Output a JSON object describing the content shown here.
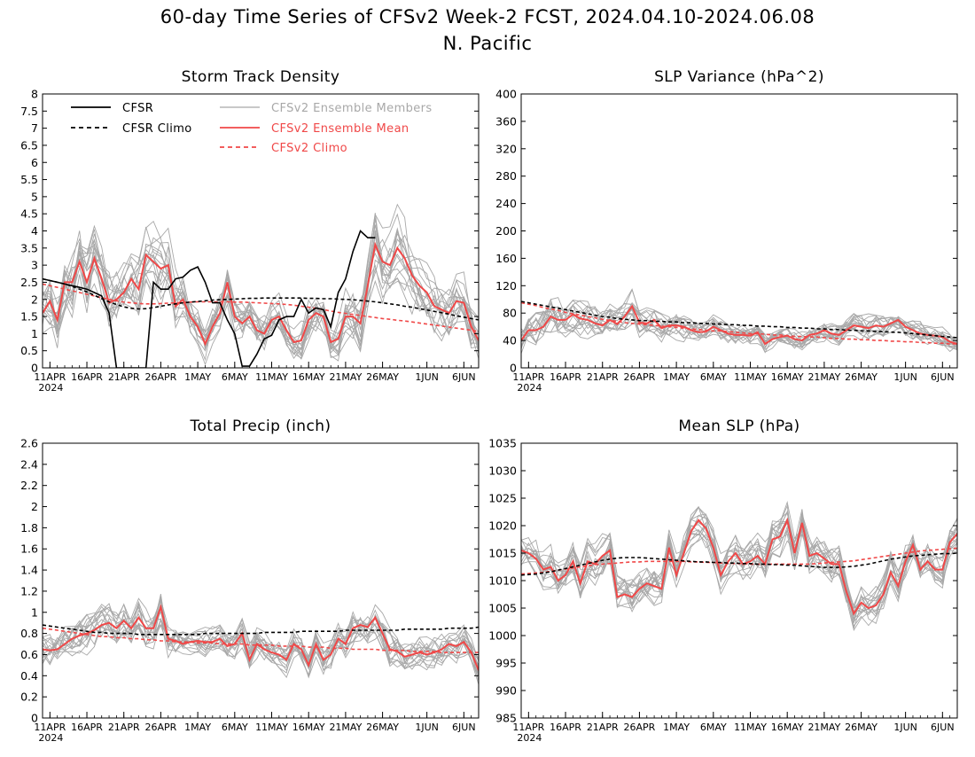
{
  "page": {
    "title_line1": "60-day Time Series of CFSv2 Week-2 FCST, 2024.04.10-2024.06.08",
    "title_line2": "N. Pacific"
  },
  "colors": {
    "cfsr": "#000000",
    "members": "#a8a8a8",
    "ensemble_mean": "#f04848",
    "axis": "#000000"
  },
  "chart_data": [
    {
      "id": "storm-track-density",
      "type": "line",
      "title": "Storm Track Density",
      "xlabel": "",
      "ylabel": "",
      "ylim": [
        0,
        8
      ],
      "yticks": [
        "0",
        "0.5",
        "1",
        "1.5",
        "2",
        "2.5",
        "3",
        "3.5",
        "4",
        "4.5",
        "5",
        "5.5",
        "6",
        "6.5",
        "7",
        "7.5",
        "8"
      ],
      "xticks": [
        {
          "label": "11APR",
          "day": 1
        },
        {
          "label": "16APR",
          "day": 6
        },
        {
          "label": "21APR",
          "day": 11
        },
        {
          "label": "26APR",
          "day": 16
        },
        {
          "label": "1MAY",
          "day": 21
        },
        {
          "label": "6MAY",
          "day": 26
        },
        {
          "label": "11MAY",
          "day": 31
        },
        {
          "label": "16MAY",
          "day": 36
        },
        {
          "label": "21MAY",
          "day": 41
        },
        {
          "label": "26MAY",
          "day": 46
        },
        {
          "label": "1JUN",
          "day": 52
        },
        {
          "label": "6JUN",
          "day": 57
        }
      ],
      "year_label": "2024",
      "legend_position": "top",
      "legend": [
        {
          "label": "CFSR",
          "style": "cfsr"
        },
        {
          "label": "CFSR Climo",
          "style": "cfsr_climo"
        },
        {
          "label": "CFSv2 Ensemble Members",
          "style": "members"
        },
        {
          "label": "CFSv2 Ensemble Mean",
          "style": "mean"
        },
        {
          "label": "CFSv2 Climo",
          "style": "climo"
        }
      ],
      "cfsr": [
        2.6,
        2.55,
        2.5,
        2.45,
        2.4,
        2.35,
        2.3,
        2.2,
        2.1,
        1.6,
        0,
        0,
        0,
        0,
        0,
        2.5,
        2.3,
        2.3,
        2.6,
        2.65,
        2.85,
        2.95,
        2.5,
        1.9,
        1.9,
        1.4,
        1.0,
        0.05,
        0.05,
        0.4,
        0.85,
        0.95,
        1.4,
        1.5,
        1.5,
        2.0,
        1.6,
        1.75,
        1.7,
        1.2,
        2.2,
        2.6,
        3.4,
        4.0,
        3.8,
        3.8
      ],
      "cfsr_climo": [
        2.6,
        2.55,
        2.5,
        2.45,
        2.38,
        2.3,
        2.22,
        2.12,
        2.02,
        1.93,
        1.85,
        1.78,
        1.74,
        1.72,
        1.73,
        1.76,
        1.8,
        1.84,
        1.87,
        1.9,
        1.92,
        1.94,
        1.96,
        1.98,
        1.99,
        2.0,
        2.01,
        2.02,
        2.03,
        2.03,
        2.04,
        2.04,
        2.04,
        2.04,
        2.04,
        2.04,
        2.03,
        2.03,
        2.02,
        2.02,
        2.01,
        2.0,
        1.99,
        1.97,
        1.95,
        1.93,
        1.9,
        1.87,
        1.84,
        1.8,
        1.77,
        1.73,
        1.69,
        1.65,
        1.61,
        1.57,
        1.52,
        1.48,
        1.44,
        1.4
      ],
      "cfs_climo": [
        2.45,
        2.4,
        2.35,
        2.3,
        2.25,
        2.2,
        2.15,
        2.1,
        2.05,
        2.0,
        1.96,
        1.92,
        1.9,
        1.88,
        1.87,
        1.87,
        1.88,
        1.89,
        1.9,
        1.91,
        1.92,
        1.93,
        1.93,
        1.93,
        1.93,
        1.93,
        1.92,
        1.92,
        1.91,
        1.9,
        1.89,
        1.88,
        1.87,
        1.85,
        1.83,
        1.8,
        1.77,
        1.74,
        1.7,
        1.66,
        1.62,
        1.59,
        1.56,
        1.53,
        1.5,
        1.47,
        1.44,
        1.42,
        1.39,
        1.37,
        1.34,
        1.31,
        1.28,
        1.25,
        1.22,
        1.19,
        1.16,
        1.13,
        1.1,
        1.06
      ],
      "ensemble_mean": [
        1.6,
        1.95,
        1.4,
        2.5,
        2.5,
        3.1,
        2.5,
        3.2,
        2.6,
        1.9,
        2.0,
        2.2,
        2.6,
        2.3,
        3.3,
        3.1,
        2.9,
        3.0,
        1.8,
        2.0,
        1.5,
        1.2,
        0.7,
        1.2,
        1.6,
        2.5,
        1.5,
        1.3,
        1.5,
        1.1,
        1.0,
        1.4,
        1.5,
        1.1,
        0.75,
        0.8,
        1.4,
        1.6,
        1.5,
        0.75,
        0.85,
        1.5,
        1.5,
        1.3,
        2.4,
        3.6,
        3.1,
        3.0,
        3.5,
        3.2,
        2.7,
        2.4,
        2.2,
        1.8,
        1.7,
        1.6,
        1.95,
        1.9,
        1.2,
        0.8
      ],
      "members_spread": [
        1.2,
        1.4,
        1.3,
        1.4,
        1.5,
        1.5,
        1.4,
        1.5,
        1.5,
        1.4,
        1.3,
        1.3,
        1.4,
        1.5,
        1.6,
        1.5,
        1.4,
        1.3,
        1.2,
        1.1,
        1.0,
        0.9,
        0.8,
        0.8,
        0.8,
        0.9,
        0.8,
        0.8,
        0.8,
        0.8,
        0.8,
        0.8,
        0.8,
        0.8,
        0.8,
        0.8,
        0.9,
        0.9,
        0.9,
        0.9,
        1.0,
        1.1,
        1.2,
        1.3,
        1.4,
        1.5,
        1.5,
        1.4,
        1.4,
        1.3,
        1.3,
        1.2,
        1.2,
        1.1,
        1.1,
        1.0,
        1.0,
        1.0,
        0.9,
        0.9
      ]
    },
    {
      "id": "slp-variance",
      "type": "line",
      "title": "SLP Variance (hPa^2)",
      "xlabel": "",
      "ylabel": "",
      "ylim": [
        0,
        400
      ],
      "yticks": [
        "0",
        "40",
        "80",
        "120",
        "160",
        "200",
        "240",
        "280",
        "320",
        "360",
        "400"
      ],
      "xticks": [
        {
          "label": "11APR",
          "day": 1
        },
        {
          "label": "16APR",
          "day": 6
        },
        {
          "label": "21APR",
          "day": 11
        },
        {
          "label": "26APR",
          "day": 16
        },
        {
          "label": "1MAY",
          "day": 21
        },
        {
          "label": "6MAY",
          "day": 26
        },
        {
          "label": "11MAY",
          "day": 31
        },
        {
          "label": "16MAY",
          "day": 36
        },
        {
          "label": "21MAY",
          "day": 41
        },
        {
          "label": "26MAY",
          "day": 46
        },
        {
          "label": "1JUN",
          "day": 52
        },
        {
          "label": "6JUN",
          "day": 57
        }
      ],
      "year_label": "2024",
      "cfsr_climo": [
        97,
        95,
        93,
        91,
        89,
        87,
        85,
        83,
        81,
        79,
        77,
        75,
        74,
        72,
        71,
        70,
        69,
        69,
        68,
        68,
        67,
        67,
        66,
        66,
        65,
        65,
        64,
        64,
        63,
        63,
        62,
        62,
        61,
        61,
        60,
        60,
        59,
        59,
        58,
        58,
        57,
        57,
        56,
        56,
        55,
        55,
        54,
        54,
        53,
        53,
        52,
        52,
        51,
        50,
        49,
        48,
        47,
        46,
        45,
        44
      ],
      "cfs_climo": [
        95,
        93,
        91,
        88,
        86,
        84,
        81,
        79,
        77,
        75,
        73,
        71,
        69,
        68,
        66,
        65,
        64,
        63,
        62,
        61,
        60,
        59,
        58,
        57,
        56,
        55,
        54,
        54,
        53,
        52,
        51,
        50,
        50,
        49,
        48,
        48,
        47,
        46,
        46,
        45,
        45,
        44,
        43,
        43,
        42,
        42,
        41,
        41,
        40,
        40,
        39,
        39,
        38,
        38,
        37,
        37,
        36,
        36,
        35,
        35
      ],
      "ensemble_mean": [
        40,
        55,
        55,
        60,
        75,
        70,
        70,
        78,
        72,
        70,
        65,
        62,
        70,
        64,
        75,
        90,
        66,
        65,
        70,
        58,
        62,
        62,
        60,
        55,
        52,
        53,
        60,
        55,
        50,
        48,
        48,
        47,
        52,
        35,
        42,
        45,
        47,
        42,
        40,
        48,
        50,
        55,
        50,
        48,
        55,
        62,
        60,
        58,
        62,
        60,
        65,
        70,
        60,
        55,
        50,
        48,
        47,
        45,
        38,
        35
      ],
      "members_spread": [
        35,
        38,
        38,
        38,
        40,
        40,
        38,
        38,
        36,
        36,
        34,
        34,
        34,
        34,
        34,
        36,
        32,
        30,
        30,
        28,
        28,
        28,
        26,
        26,
        26,
        24,
        24,
        24,
        22,
        22,
        22,
        22,
        22,
        20,
        20,
        20,
        20,
        20,
        20,
        20,
        20,
        22,
        22,
        22,
        22,
        24,
        26,
        26,
        26,
        24,
        24,
        24,
        22,
        22,
        22,
        20,
        20,
        20,
        20,
        18
      ]
    },
    {
      "id": "total-precip",
      "type": "line",
      "title": "Total Precip (inch)",
      "xlabel": "",
      "ylabel": "",
      "ylim": [
        0,
        2.6
      ],
      "yticks": [
        "0",
        "0.2",
        "0.4",
        "0.6",
        "0.8",
        "1",
        "1.2",
        "1.4",
        "1.6",
        "1.8",
        "2",
        "2.2",
        "2.4",
        "2.6"
      ],
      "xticks": [
        {
          "label": "11APR",
          "day": 1
        },
        {
          "label": "16APR",
          "day": 6
        },
        {
          "label": "21APR",
          "day": 11
        },
        {
          "label": "26APR",
          "day": 16
        },
        {
          "label": "1MAY",
          "day": 21
        },
        {
          "label": "6MAY",
          "day": 26
        },
        {
          "label": "11MAY",
          "day": 31
        },
        {
          "label": "16MAY",
          "day": 36
        },
        {
          "label": "21MAY",
          "day": 41
        },
        {
          "label": "26MAY",
          "day": 46
        },
        {
          "label": "1JUN",
          "day": 52
        },
        {
          "label": "6JUN",
          "day": 57
        }
      ],
      "year_label": "2024",
      "cfsr_climo": [
        0.88,
        0.87,
        0.86,
        0.85,
        0.84,
        0.83,
        0.82,
        0.81,
        0.81,
        0.8,
        0.8,
        0.8,
        0.8,
        0.79,
        0.79,
        0.79,
        0.79,
        0.79,
        0.79,
        0.79,
        0.79,
        0.79,
        0.8,
        0.8,
        0.8,
        0.8,
        0.8,
        0.8,
        0.8,
        0.8,
        0.81,
        0.81,
        0.81,
        0.81,
        0.81,
        0.82,
        0.82,
        0.82,
        0.82,
        0.82,
        0.82,
        0.83,
        0.83,
        0.83,
        0.83,
        0.83,
        0.83,
        0.83,
        0.83,
        0.84,
        0.84,
        0.84,
        0.84,
        0.84,
        0.84,
        0.85,
        0.85,
        0.85,
        0.85,
        0.86
      ],
      "cfs_climo": [
        0.85,
        0.84,
        0.83,
        0.82,
        0.81,
        0.8,
        0.79,
        0.78,
        0.77,
        0.77,
        0.76,
        0.76,
        0.75,
        0.75,
        0.74,
        0.74,
        0.73,
        0.73,
        0.72,
        0.72,
        0.72,
        0.71,
        0.71,
        0.71,
        0.7,
        0.7,
        0.7,
        0.7,
        0.69,
        0.69,
        0.69,
        0.69,
        0.68,
        0.68,
        0.68,
        0.68,
        0.67,
        0.67,
        0.67,
        0.66,
        0.66,
        0.66,
        0.65,
        0.65,
        0.65,
        0.65,
        0.64,
        0.64,
        0.64,
        0.64,
        0.63,
        0.63,
        0.63,
        0.63,
        0.62,
        0.62,
        0.62,
        0.62,
        0.62,
        0.62
      ],
      "ensemble_mean": [
        0.65,
        0.64,
        0.65,
        0.7,
        0.75,
        0.78,
        0.8,
        0.83,
        0.88,
        0.9,
        0.85,
        0.92,
        0.85,
        0.95,
        0.85,
        0.85,
        1.05,
        0.75,
        0.73,
        0.7,
        0.72,
        0.73,
        0.72,
        0.72,
        0.75,
        0.68,
        0.7,
        0.8,
        0.55,
        0.7,
        0.65,
        0.62,
        0.6,
        0.55,
        0.7,
        0.65,
        0.5,
        0.7,
        0.55,
        0.6,
        0.75,
        0.7,
        0.85,
        0.88,
        0.86,
        0.95,
        0.8,
        0.65,
        0.63,
        0.58,
        0.6,
        0.62,
        0.6,
        0.62,
        0.65,
        0.7,
        0.68,
        0.72,
        0.62,
        0.45
      ],
      "members_spread": [
        0.25,
        0.25,
        0.24,
        0.24,
        0.25,
        0.26,
        0.26,
        0.26,
        0.26,
        0.26,
        0.26,
        0.26,
        0.26,
        0.26,
        0.27,
        0.27,
        0.27,
        0.24,
        0.22,
        0.22,
        0.2,
        0.2,
        0.2,
        0.2,
        0.2,
        0.2,
        0.2,
        0.2,
        0.2,
        0.2,
        0.2,
        0.2,
        0.2,
        0.2,
        0.2,
        0.2,
        0.2,
        0.2,
        0.2,
        0.2,
        0.22,
        0.24,
        0.25,
        0.26,
        0.26,
        0.26,
        0.25,
        0.24,
        0.22,
        0.22,
        0.22,
        0.22,
        0.22,
        0.22,
        0.22,
        0.22,
        0.22,
        0.22,
        0.22,
        0.22
      ]
    },
    {
      "id": "mean-slp",
      "type": "line",
      "title": "Mean SLP (hPa)",
      "xlabel": "",
      "ylabel": "",
      "ylim": [
        985,
        1035
      ],
      "yticks": [
        "985",
        "990",
        "995",
        "1000",
        "1005",
        "1010",
        "1015",
        "1020",
        "1025",
        "1030",
        "1035"
      ],
      "xticks": [
        {
          "label": "11APR",
          "day": 1
        },
        {
          "label": "16APR",
          "day": 6
        },
        {
          "label": "21APR",
          "day": 11
        },
        {
          "label": "26APR",
          "day": 16
        },
        {
          "label": "1MAY",
          "day": 21
        },
        {
          "label": "6MAY",
          "day": 26
        },
        {
          "label": "11MAY",
          "day": 31
        },
        {
          "label": "16MAY",
          "day": 36
        },
        {
          "label": "21MAY",
          "day": 41
        },
        {
          "label": "26MAY",
          "day": 46
        },
        {
          "label": "1JUN",
          "day": 52
        },
        {
          "label": "6JUN",
          "day": 57
        }
      ],
      "year_label": "2024",
      "cfsr_climo": [
        1011,
        1011.1,
        1011.2,
        1011.4,
        1011.6,
        1011.9,
        1012.2,
        1012.5,
        1012.8,
        1013.1,
        1013.4,
        1013.7,
        1013.9,
        1014.1,
        1014.2,
        1014.2,
        1014.2,
        1014.1,
        1014,
        1013.9,
        1013.8,
        1013.7,
        1013.6,
        1013.5,
        1013.4,
        1013.4,
        1013.3,
        1013.3,
        1013.2,
        1013.2,
        1013.1,
        1013.1,
        1013.0,
        1013.0,
        1012.9,
        1012.9,
        1012.8,
        1012.8,
        1012.7,
        1012.6,
        1012.5,
        1012.4,
        1012.4,
        1012.4,
        1012.5,
        1012.6,
        1012.8,
        1013.0,
        1013.3,
        1013.6,
        1013.9,
        1014.1,
        1014.3,
        1014.5,
        1014.6,
        1014.7,
        1014.8,
        1014.9,
        1014.9,
        1015.0
      ],
      "cfs_climo": [
        1011.2,
        1011.3,
        1011.4,
        1011.5,
        1011.7,
        1011.9,
        1012.1,
        1012.3,
        1012.5,
        1012.7,
        1012.9,
        1013.0,
        1013.1,
        1013.2,
        1013.3,
        1013.4,
        1013.4,
        1013.5,
        1013.5,
        1013.5,
        1013.5,
        1013.5,
        1013.5,
        1013.4,
        1013.4,
        1013.3,
        1013.3,
        1013.2,
        1013.2,
        1013.1,
        1013.1,
        1013.0,
        1013.0,
        1013.0,
        1013.0,
        1013.0,
        1013.0,
        1013.0,
        1013.0,
        1013.0,
        1013.1,
        1013.2,
        1013.3,
        1013.4,
        1013.5,
        1013.6,
        1013.8,
        1014.0,
        1014.2,
        1014.4,
        1014.6,
        1014.8,
        1015.0,
        1015.2,
        1015.4,
        1015.5,
        1015.6,
        1015.7,
        1015.8,
        1015.9
      ],
      "ensemble_mean": [
        1015.5,
        1015,
        1014,
        1012,
        1012.5,
        1010,
        1011,
        1013.5,
        1009.5,
        1013.5,
        1013,
        1014.5,
        1015.5,
        1007,
        1007.5,
        1007,
        1008.5,
        1009.5,
        1009,
        1008.5,
        1016,
        1011,
        1015,
        1019,
        1021,
        1019.5,
        1016,
        1011,
        1013.5,
        1015,
        1013,
        1013.5,
        1014.5,
        1013,
        1017.5,
        1018,
        1021,
        1015,
        1020.5,
        1014.5,
        1015,
        1014,
        1013,
        1013,
        1008,
        1004,
        1006,
        1005,
        1005.5,
        1007.5,
        1011.5,
        1009,
        1013.5,
        1016.5,
        1012,
        1013.5,
        1012,
        1012,
        1017,
        1018.5
      ],
      "members_spread": [
        5,
        5,
        5,
        5,
        5,
        5,
        5,
        5,
        5,
        5,
        5,
        5,
        5,
        5,
        5,
        5,
        5,
        5,
        5,
        5,
        5,
        5,
        5,
        5,
        5,
        5,
        5,
        5,
        5,
        5,
        5,
        5,
        5,
        5,
        5,
        5,
        5,
        5,
        5,
        5,
        5,
        5,
        5,
        5,
        5,
        5,
        5,
        5,
        5,
        5,
        5,
        5,
        5,
        5,
        5,
        5,
        5,
        5,
        5,
        5
      ]
    }
  ]
}
